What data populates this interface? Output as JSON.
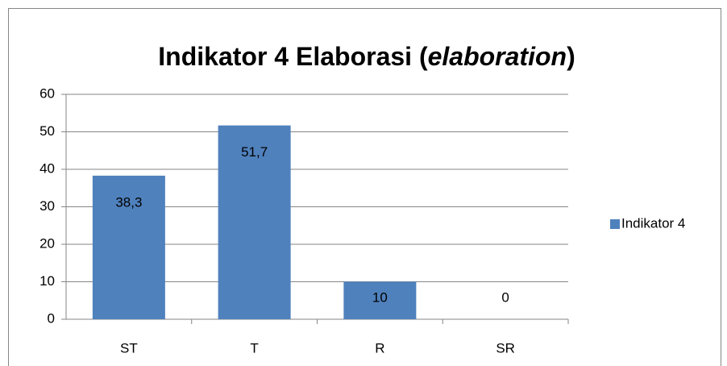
{
  "chart_data": {
    "type": "bar",
    "title": "Indikator 4 Elaborasi (elaboration)",
    "title_italic": "elaboration",
    "categories": [
      "ST",
      "T",
      "R",
      "SR"
    ],
    "series": [
      {
        "name": "Indikator 4",
        "color": "#4f81bd",
        "values": [
          38.3,
          51.7,
          10,
          0
        ],
        "value_labels": [
          "38,3",
          "51,7",
          "10",
          "0"
        ]
      }
    ],
    "ylim": [
      0,
      60
    ],
    "yticks": [
      0,
      10,
      20,
      30,
      40,
      50,
      60
    ],
    "grid": true,
    "legend": "right"
  }
}
